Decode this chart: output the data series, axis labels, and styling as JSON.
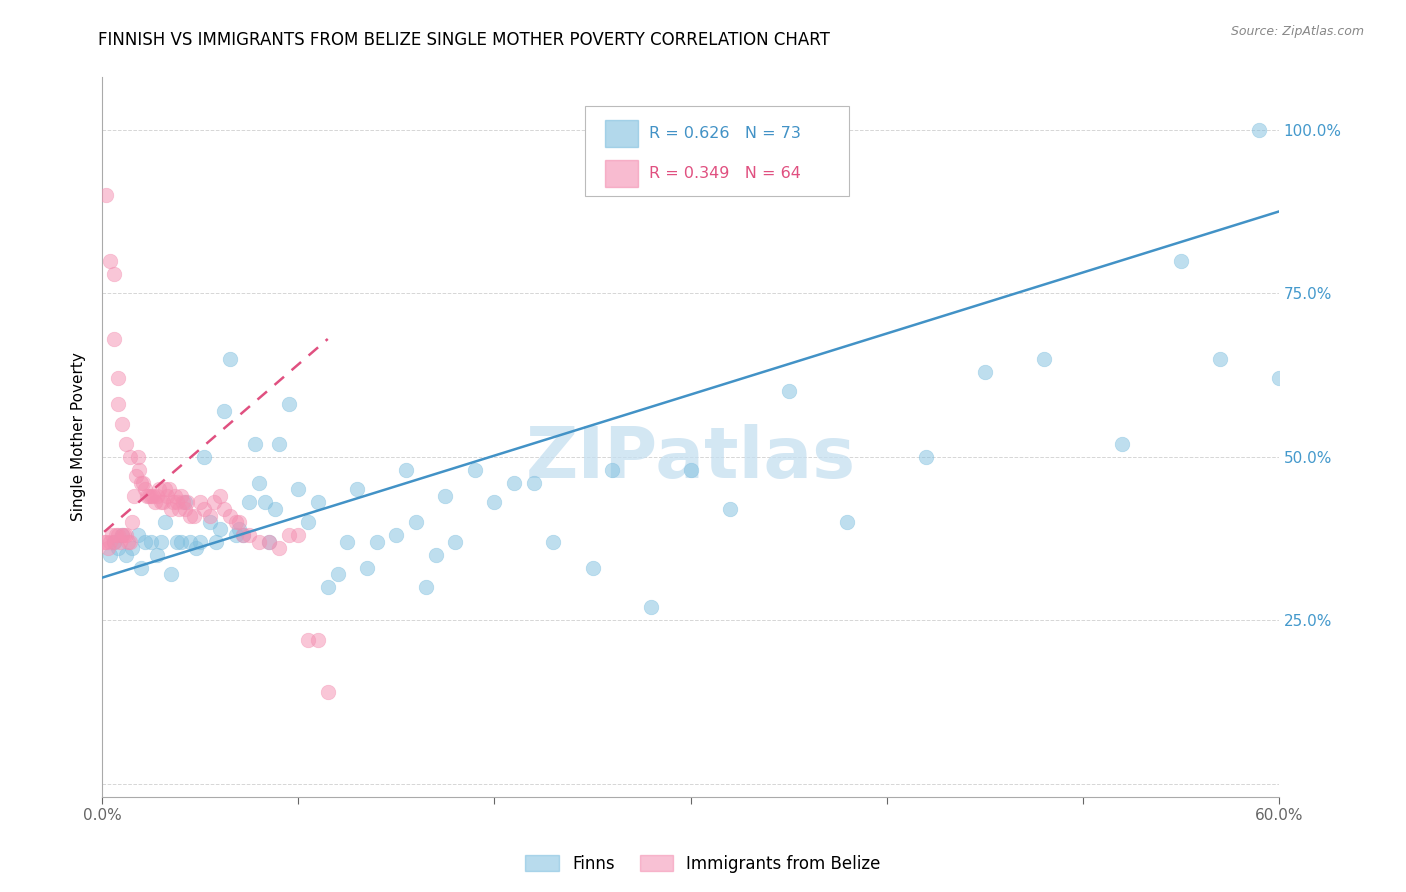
{
  "title": "FINNISH VS IMMIGRANTS FROM BELIZE SINGLE MOTHER POVERTY CORRELATION CHART",
  "source": "Source: ZipAtlas.com",
  "ylabel": "Single Mother Poverty",
  "xlim": [
    0.0,
    0.6
  ],
  "ylim": [
    -0.02,
    1.08
  ],
  "xticks": [
    0.0,
    0.1,
    0.2,
    0.3,
    0.4,
    0.5,
    0.6
  ],
  "xticklabels": [
    "0.0%",
    "",
    "",
    "",
    "",
    "",
    "60.0%"
  ],
  "yticks": [
    0.0,
    0.25,
    0.5,
    0.75,
    1.0
  ],
  "yticklabels": [
    "",
    "25.0%",
    "50.0%",
    "75.0%",
    "100.0%"
  ],
  "blue_color": "#7fbfdf",
  "pink_color": "#f48fb1",
  "blue_line_color": "#4292c6",
  "pink_line_color": "#e05080",
  "watermark": "ZIPatlas",
  "blue_scatter_x": [
    0.004,
    0.006,
    0.008,
    0.01,
    0.012,
    0.015,
    0.018,
    0.02,
    0.022,
    0.025,
    0.028,
    0.03,
    0.032,
    0.035,
    0.038,
    0.04,
    0.042,
    0.045,
    0.048,
    0.05,
    0.052,
    0.055,
    0.058,
    0.06,
    0.062,
    0.065,
    0.068,
    0.07,
    0.072,
    0.075,
    0.078,
    0.08,
    0.083,
    0.085,
    0.088,
    0.09,
    0.095,
    0.1,
    0.105,
    0.11,
    0.115,
    0.12,
    0.125,
    0.13,
    0.135,
    0.14,
    0.15,
    0.155,
    0.16,
    0.165,
    0.17,
    0.175,
    0.18,
    0.19,
    0.2,
    0.21,
    0.22,
    0.23,
    0.25,
    0.26,
    0.28,
    0.3,
    0.32,
    0.35,
    0.38,
    0.42,
    0.45,
    0.48,
    0.52,
    0.55,
    0.57,
    0.59,
    0.6
  ],
  "blue_scatter_y": [
    0.35,
    0.37,
    0.36,
    0.38,
    0.35,
    0.36,
    0.38,
    0.33,
    0.37,
    0.37,
    0.35,
    0.37,
    0.4,
    0.32,
    0.37,
    0.37,
    0.43,
    0.37,
    0.36,
    0.37,
    0.5,
    0.4,
    0.37,
    0.39,
    0.57,
    0.65,
    0.38,
    0.39,
    0.38,
    0.43,
    0.52,
    0.46,
    0.43,
    0.37,
    0.42,
    0.52,
    0.58,
    0.45,
    0.4,
    0.43,
    0.3,
    0.32,
    0.37,
    0.45,
    0.33,
    0.37,
    0.38,
    0.48,
    0.4,
    0.3,
    0.35,
    0.44,
    0.37,
    0.48,
    0.43,
    0.46,
    0.46,
    0.37,
    0.33,
    0.48,
    0.27,
    0.48,
    0.42,
    0.6,
    0.4,
    0.5,
    0.63,
    0.65,
    0.52,
    0.8,
    0.65,
    1.0,
    0.62
  ],
  "pink_scatter_x": [
    0.001,
    0.002,
    0.003,
    0.004,
    0.005,
    0.006,
    0.007,
    0.008,
    0.009,
    0.01,
    0.011,
    0.012,
    0.013,
    0.014,
    0.015,
    0.016,
    0.017,
    0.018,
    0.019,
    0.02,
    0.021,
    0.022,
    0.023,
    0.024,
    0.025,
    0.026,
    0.027,
    0.028,
    0.029,
    0.03,
    0.031,
    0.032,
    0.033,
    0.034,
    0.035,
    0.036,
    0.037,
    0.038,
    0.039,
    0.04,
    0.041,
    0.042,
    0.043,
    0.045,
    0.047,
    0.05,
    0.052,
    0.055,
    0.057,
    0.06,
    0.062,
    0.065,
    0.068,
    0.07,
    0.072,
    0.075,
    0.08,
    0.085,
    0.09,
    0.095,
    0.1,
    0.105,
    0.11,
    0.115
  ],
  "pink_scatter_y": [
    0.37,
    0.37,
    0.36,
    0.37,
    0.38,
    0.37,
    0.38,
    0.38,
    0.37,
    0.38,
    0.38,
    0.38,
    0.37,
    0.37,
    0.4,
    0.44,
    0.47,
    0.5,
    0.48,
    0.46,
    0.46,
    0.45,
    0.44,
    0.44,
    0.44,
    0.44,
    0.43,
    0.44,
    0.45,
    0.43,
    0.43,
    0.45,
    0.44,
    0.45,
    0.42,
    0.43,
    0.44,
    0.43,
    0.42,
    0.44,
    0.43,
    0.42,
    0.43,
    0.41,
    0.41,
    0.43,
    0.42,
    0.41,
    0.43,
    0.44,
    0.42,
    0.41,
    0.4,
    0.4,
    0.38,
    0.38,
    0.37,
    0.37,
    0.36,
    0.38,
    0.38,
    0.22,
    0.22,
    0.14
  ],
  "pink_extra_x": [
    0.002,
    0.004,
    0.006,
    0.006,
    0.008,
    0.008,
    0.01,
    0.012,
    0.014
  ],
  "pink_extra_y": [
    0.9,
    0.8,
    0.78,
    0.68,
    0.62,
    0.58,
    0.55,
    0.52,
    0.5
  ],
  "blue_trend_x": [
    0.0,
    0.6
  ],
  "blue_trend_y": [
    0.315,
    0.875
  ],
  "pink_trend_x": [
    0.001,
    0.115
  ],
  "pink_trend_y": [
    0.385,
    0.68
  ],
  "title_fontsize": 12,
  "axis_label_fontsize": 11,
  "tick_fontsize": 11,
  "watermark_fontsize": 52,
  "background_color": "#ffffff",
  "grid_color": "#cccccc",
  "axis_color": "#aaaaaa",
  "right_tick_color": "#4499cc",
  "bottom_tick_color": "#666666",
  "legend_r_blue": "R = 0.626",
  "legend_n_blue": "N = 73",
  "legend_r_pink": "R = 0.349",
  "legend_n_pink": "N = 64",
  "legend_label_blue": "Finns",
  "legend_label_pink": "Immigrants from Belize"
}
